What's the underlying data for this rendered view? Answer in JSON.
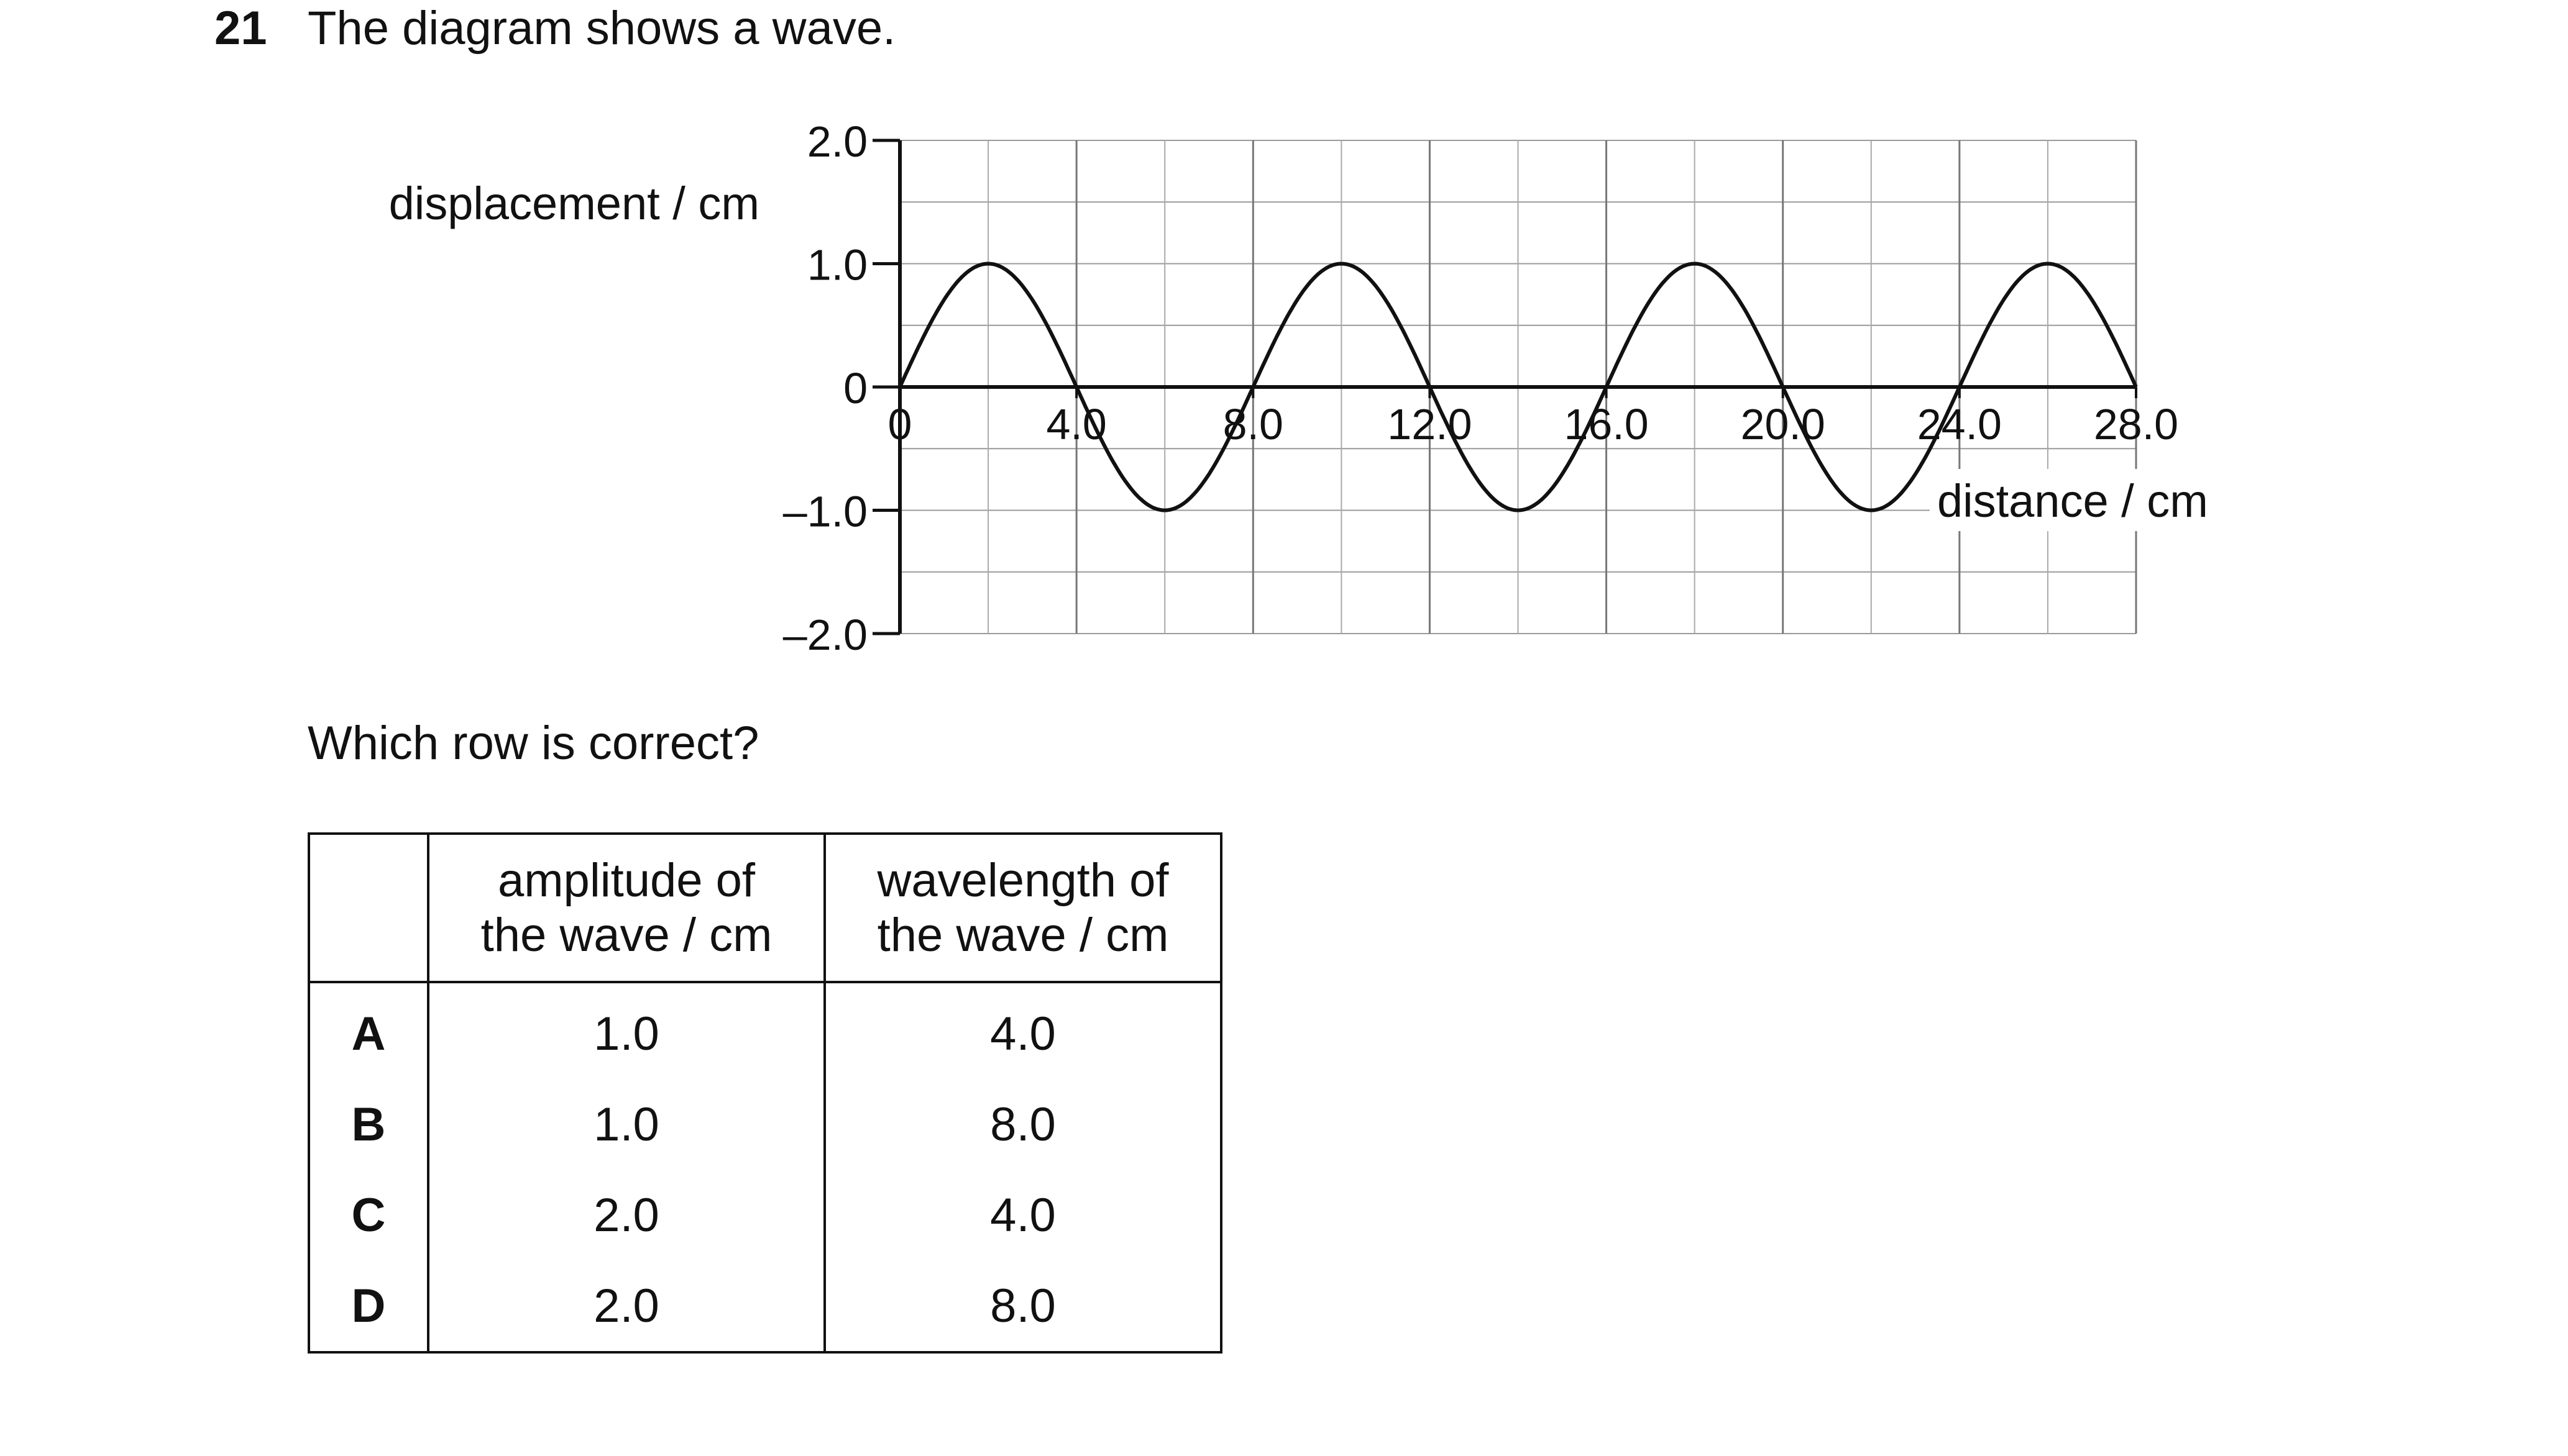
{
  "question": {
    "number": "21",
    "text": "The diagram shows a wave."
  },
  "chart_data": {
    "type": "line",
    "ylabel": "displacement / cm",
    "xlabel": "distance / cm",
    "x_ticks": [
      "0",
      "4.0",
      "8.0",
      "12.0",
      "16.0",
      "20.0",
      "24.0",
      "28.0"
    ],
    "y_ticks": [
      "2.0",
      "1.0",
      "0",
      "–1.0",
      "–2.0"
    ],
    "xlim": [
      0,
      28
    ],
    "ylim": [
      -2,
      2
    ],
    "grid": true,
    "series": [
      {
        "amplitude": 1.0,
        "wavelength": 8.0,
        "x": [
          0,
          2,
          4,
          6,
          8,
          10,
          12,
          14,
          16,
          18,
          20,
          22,
          24,
          26,
          28
        ],
        "y": [
          0,
          1,
          0,
          -1,
          0,
          1,
          0,
          -1,
          0,
          1,
          0,
          -1,
          0,
          1,
          0
        ]
      }
    ]
  },
  "prompt": "Which row is correct?",
  "table": {
    "headers": [
      "",
      [
        "amplitude of",
        "the wave / cm"
      ],
      [
        "wavelength of",
        "the wave / cm"
      ]
    ],
    "rows": [
      {
        "key": "A",
        "amplitude": "1.0",
        "wavelength": "4.0"
      },
      {
        "key": "B",
        "amplitude": "1.0",
        "wavelength": "8.0"
      },
      {
        "key": "C",
        "amplitude": "2.0",
        "wavelength": "4.0"
      },
      {
        "key": "D",
        "amplitude": "2.0",
        "wavelength": "8.0"
      }
    ]
  }
}
